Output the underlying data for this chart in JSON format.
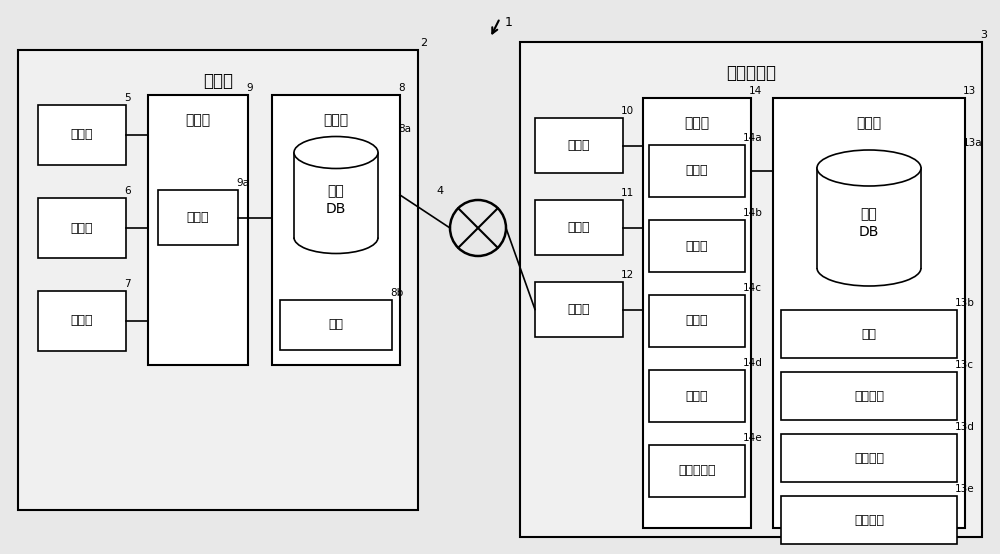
{
  "bg_color": "#e8e8e8",
  "fig_bg": "#e8e8e8",
  "box_fill": "#ffffff",
  "outer_fill": "#f0f0f0",
  "server_label": "服务器",
  "server_num": "2",
  "client_label": "利用者终端",
  "client_num": "3",
  "network_num": "4",
  "input_s": {
    "label": "输入部",
    "num": "5"
  },
  "output_s": {
    "label": "输出部",
    "num": "6"
  },
  "transceiver_s": {
    "label": "收发部",
    "num": "7"
  },
  "storage_s": {
    "label": "存储部",
    "num": "8"
  },
  "content_db_s": {
    "label": "内容\nDB",
    "num": "8a"
  },
  "dictionary_s": {
    "label": "辞典",
    "num": "8b"
  },
  "control_s": {
    "label": "控制部",
    "num": "9"
  },
  "compress_s": {
    "label": "压缩部",
    "num": "9a"
  },
  "input_c": {
    "label": "输入部",
    "num": "10"
  },
  "output_c": {
    "label": "输出部",
    "num": "11"
  },
  "transceiver_c": {
    "label": "收发部",
    "num": "12"
  },
  "storage_c": {
    "label": "存储部",
    "num": "13"
  },
  "content_db_c": {
    "label": "内容\nDB",
    "num": "13a"
  },
  "dictionary_c": {
    "label": "辞典",
    "num": "13b"
  },
  "decomp_area": {
    "label": "解压区域",
    "num": "13c"
  },
  "freq_data": {
    "label": "频率数据",
    "num": "13d"
  },
  "replace_table": {
    "label": "置换表格",
    "num": "13e"
  },
  "control_c": {
    "label": "控制部",
    "num": "14"
  },
  "decompress_c": {
    "label": "解压部",
    "num": "14a"
  },
  "store_c": {
    "label": "储存部",
    "num": "14b"
  },
  "update_c": {
    "label": "更新部",
    "num": "14c"
  },
  "search_c": {
    "label": "检索部",
    "num": "14d"
  },
  "display_c": {
    "label": "显示控制部",
    "num": "14e"
  }
}
